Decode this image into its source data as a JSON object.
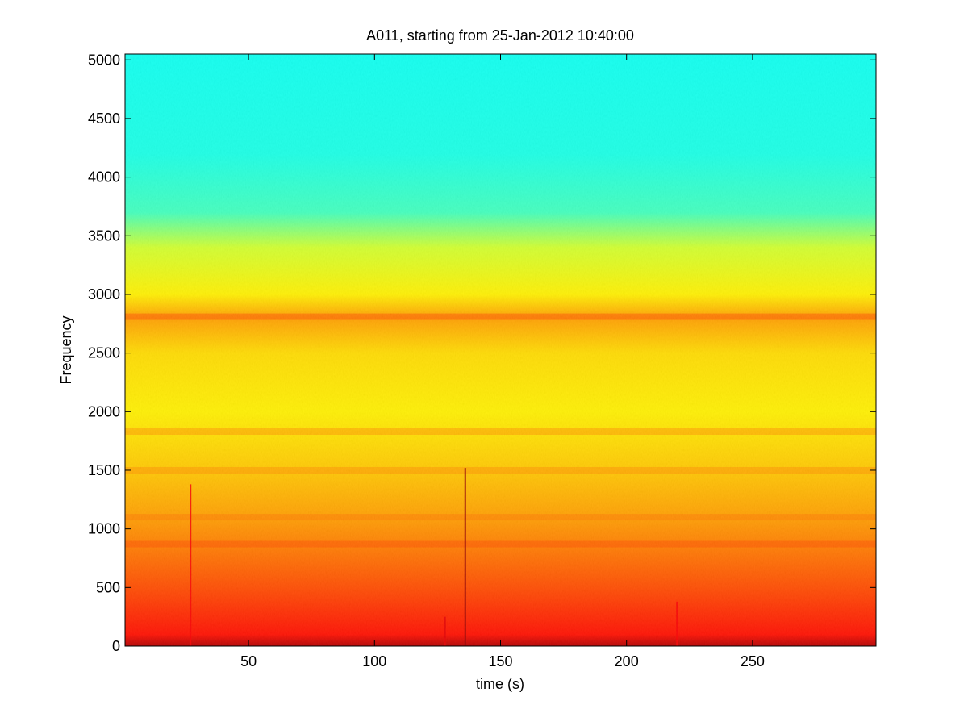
{
  "chart_data": {
    "type": "heatmap",
    "title": "A011, starting from 25-Jan-2012 10:40:00",
    "xlabel": "time (s)",
    "ylabel": "Frequency",
    "xlim": [
      1,
      299
    ],
    "ylim": [
      0,
      5050
    ],
    "x_ticks": [
      50,
      100,
      150,
      200,
      250
    ],
    "y_ticks": [
      0,
      500,
      1000,
      1500,
      2000,
      2500,
      3000,
      3500,
      4000,
      4500,
      5000
    ],
    "colormap": "jet",
    "grid": false,
    "legend": "none",
    "intensity_profile_by_frequency": [
      {
        "f": 0,
        "level": 0.95
      },
      {
        "f": 100,
        "level": 0.86
      },
      {
        "f": 500,
        "level": 0.8
      },
      {
        "f": 800,
        "level": 0.76
      },
      {
        "f": 1100,
        "level": 0.72
      },
      {
        "f": 1500,
        "level": 0.68
      },
      {
        "f": 2000,
        "level": 0.64
      },
      {
        "f": 2500,
        "level": 0.66
      },
      {
        "f": 2800,
        "level": 0.72
      },
      {
        "f": 3000,
        "level": 0.64
      },
      {
        "f": 3400,
        "level": 0.58
      },
      {
        "f": 3700,
        "level": 0.44
      },
      {
        "f": 4200,
        "level": 0.4
      },
      {
        "f": 5050,
        "level": 0.39
      }
    ],
    "horizontal_bands": [
      {
        "f": 2810,
        "level": 0.8
      },
      {
        "f": 1830,
        "level": 0.74
      },
      {
        "f": 1500,
        "level": 0.74
      },
      {
        "f": 1100,
        "level": 0.76
      },
      {
        "f": 870,
        "level": 0.8
      }
    ],
    "transients": [
      {
        "t": 27,
        "f_top": 1380,
        "level": 0.88
      },
      {
        "t": 136,
        "f_top": 1520,
        "level": 0.98
      },
      {
        "t": 128,
        "f_top": 250,
        "level": 0.9
      },
      {
        "t": 220,
        "f_top": 380,
        "level": 0.88
      }
    ]
  }
}
